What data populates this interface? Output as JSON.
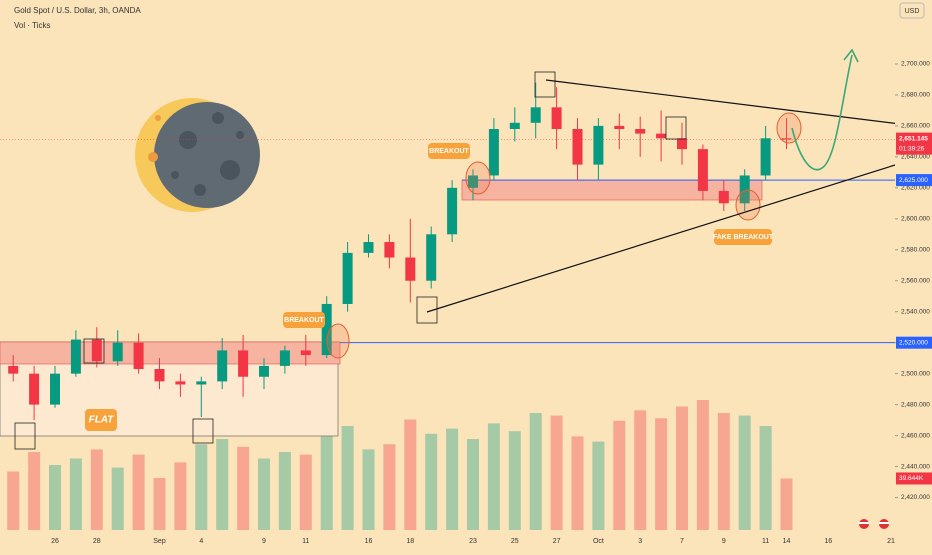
{
  "chart_data": {
    "type": "candlestick",
    "title": "Gold Spot / U.S. Dollar, 3h, OANDA",
    "volume_title": "Vol · Ticks",
    "currency": "USD",
    "categories": [
      null,
      null,
      "26",
      null,
      "28",
      null,
      null,
      "Sep",
      null,
      "4",
      null,
      null,
      "9",
      null,
      "11",
      null,
      null,
      "16",
      null,
      "18",
      null,
      null,
      "23",
      null,
      "25",
      null,
      "27",
      null,
      "Oct",
      null,
      "3",
      null,
      "7",
      null,
      "9",
      null,
      "11",
      "14",
      null,
      "16",
      null,
      null,
      "21"
    ],
    "open": [
      2505,
      2500,
      2480,
      2500,
      2522,
      2508,
      2520,
      2503,
      2495,
      2493,
      2495,
      2515,
      2498,
      2505,
      2515,
      2512,
      2545,
      2578,
      2585,
      2575,
      2560,
      2590,
      2620,
      2628,
      2658,
      2662,
      2672,
      2658,
      2635,
      2660,
      2658,
      2655,
      2652,
      2645,
      2618,
      2610,
      2628,
      2652,
      null,
      null,
      null,
      null,
      null
    ],
    "high": [
      2512,
      2505,
      2505,
      2528,
      2530,
      2528,
      2526,
      2510,
      2500,
      2498,
      2523,
      2525,
      2510,
      2518,
      2525,
      2550,
      2585,
      2590,
      2590,
      2600,
      2595,
      2625,
      2632,
      2665,
      2672,
      2688,
      2685,
      2665,
      2665,
      2668,
      2666,
      2670,
      2662,
      2648,
      2625,
      2632,
      2660,
      2665,
      null,
      null,
      null,
      null,
      null
    ],
    "low": [
      2495,
      2470,
      2478,
      2498,
      2504,
      2505,
      2500,
      2490,
      2485,
      2472,
      2490,
      2485,
      2490,
      2500,
      2505,
      2510,
      2540,
      2575,
      2568,
      2546,
      2555,
      2585,
      2612,
      2625,
      2650,
      2652,
      2645,
      2625,
      2625,
      2645,
      2640,
      2637,
      2635,
      2612,
      2605,
      2605,
      2625,
      2645,
      null,
      null,
      null,
      null,
      null
    ],
    "close": [
      2500,
      2480,
      2500,
      2522,
      2508,
      2520,
      2503,
      2495,
      2493,
      2495,
      2515,
      2498,
      2505,
      2515,
      2512,
      2545,
      2578,
      2585,
      2575,
      2560,
      2590,
      2620,
      2628,
      2658,
      2662,
      2672,
      2658,
      2635,
      2660,
      2658,
      2655,
      2652,
      2645,
      2618,
      2610,
      2628,
      2652,
      2651.145,
      null,
      null,
      null,
      null,
      null
    ],
    "volume": [
      45,
      60,
      50,
      55,
      62,
      48,
      58,
      40,
      52,
      66,
      70,
      64,
      55,
      60,
      58,
      72,
      80,
      62,
      66,
      85,
      74,
      78,
      70,
      82,
      76,
      90,
      88,
      72,
      68,
      84,
      92,
      86,
      95,
      100,
      90,
      88,
      80,
      39.644,
      null,
      null,
      null,
      null,
      null
    ],
    "volume_label": "39.644K",
    "up_color": "#089981",
    "down_color": "#f23645",
    "ylim": [
      2410,
      2720
    ],
    "yticks": [
      {
        "value": 2420,
        "label": "2,420.000"
      },
      {
        "value": 2440,
        "label": "2,440.000"
      },
      {
        "value": 2460,
        "label": "2,460.000"
      },
      {
        "value": 2480,
        "label": "2,480.000"
      },
      {
        "value": 2500,
        "label": "2,500.000"
      },
      {
        "value": 2520,
        "label": "2,520.000"
      },
      {
        "value": 2540,
        "label": "2,540.000"
      },
      {
        "value": 2560,
        "label": "2,560.000"
      },
      {
        "value": 2580,
        "label": "2,580.000"
      },
      {
        "value": 2600,
        "label": "2,600.000"
      },
      {
        "value": 2620,
        "label": "2,620.000"
      },
      {
        "value": 2640,
        "label": "2,640.000"
      },
      {
        "value": 2660,
        "label": "2,660.000"
      },
      {
        "value": 2680,
        "label": "2,680.000"
      },
      {
        "value": 2700,
        "label": "2,700.000"
      }
    ],
    "levels": [
      {
        "value": 2625,
        "label": "2,625.000",
        "color": "#2962ff"
      },
      {
        "value": 2520,
        "label": "2,520.000",
        "color": "#2962ff"
      }
    ],
    "last_price": {
      "value": 2651.145,
      "label": "2,651.145",
      "countdown": "01:39:26",
      "color": "#f23645"
    },
    "annotations": [
      "BREAKOUT",
      "BREAKOUT",
      "FAKE BREAKOUT",
      "FLAT"
    ]
  }
}
